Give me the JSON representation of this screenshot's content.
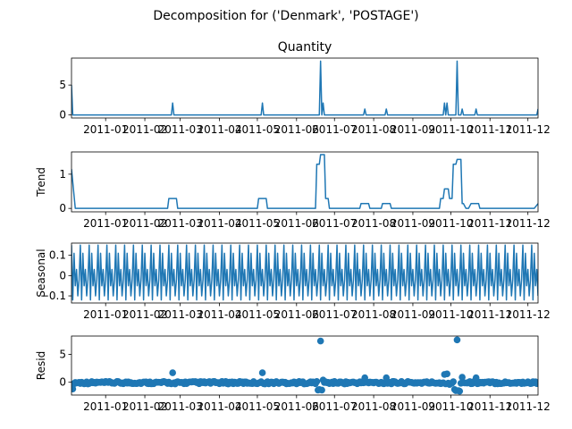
{
  "figure": {
    "suptitle": "Decomposition for ('Denmark', 'POSTAGE')"
  },
  "chart_data": [
    {
      "type": "line",
      "title": "Quantity",
      "ylabel": "",
      "ylim": [
        -0.5,
        9.5
      ],
      "yticks": [
        0,
        5
      ],
      "x_range": [
        "2010-12-05",
        "2011-12-09"
      ],
      "xtick_labels": [
        "2011-01",
        "2011-02",
        "2011-03",
        "2011-04",
        "2011-05",
        "2011-06",
        "2011-07",
        "2011-08",
        "2011-09",
        "2011-10",
        "2011-11",
        "2011-12"
      ],
      "series": [
        {
          "values_by_date": [
            [
              "2010-12-05",
              5
            ],
            [
              "2010-12-06",
              0
            ],
            [
              "2011-02-22",
              0
            ],
            [
              "2011-02-23",
              2
            ],
            [
              "2011-02-24",
              0
            ],
            [
              "2011-05-04",
              0
            ],
            [
              "2011-05-05",
              2
            ],
            [
              "2011-05-06",
              0
            ],
            [
              "2011-06-19",
              0
            ],
            [
              "2011-06-20",
              9
            ],
            [
              "2011-06-21",
              0
            ],
            [
              "2011-06-22",
              2
            ],
            [
              "2011-06-23",
              0
            ],
            [
              "2011-07-24",
              0
            ],
            [
              "2011-07-25",
              1
            ],
            [
              "2011-07-26",
              0
            ],
            [
              "2011-08-10",
              0
            ],
            [
              "2011-08-11",
              1
            ],
            [
              "2011-08-12",
              0
            ],
            [
              "2011-09-25",
              0
            ],
            [
              "2011-09-26",
              2
            ],
            [
              "2011-09-27",
              0
            ],
            [
              "2011-09-28",
              2
            ],
            [
              "2011-09-29",
              0
            ],
            [
              "2011-10-05",
              0
            ],
            [
              "2011-10-06",
              9
            ],
            [
              "2011-10-07",
              0
            ],
            [
              "2011-10-09",
              0
            ],
            [
              "2011-10-10",
              1
            ],
            [
              "2011-10-11",
              0
            ],
            [
              "2011-10-20",
              0
            ],
            [
              "2011-10-21",
              1
            ],
            [
              "2011-10-22",
              0
            ],
            [
              "2011-12-08",
              0
            ],
            [
              "2011-12-09",
              1
            ]
          ]
        }
      ]
    },
    {
      "type": "line",
      "title": "",
      "ylabel": "Trend",
      "ylim": [
        -0.1,
        1.65
      ],
      "yticks": [
        0,
        1
      ],
      "x_range": [
        "2010-12-05",
        "2011-12-09"
      ],
      "xtick_labels": [
        "2011-01",
        "2011-02",
        "2011-03",
        "2011-04",
        "2011-05",
        "2011-06",
        "2011-07",
        "2011-08",
        "2011-09",
        "2011-10",
        "2011-11",
        "2011-12"
      ],
      "series": [
        {
          "values_by_date": [
            [
              "2010-12-05",
              1.15
            ],
            [
              "2010-12-08",
              0
            ],
            [
              "2011-02-19",
              0
            ],
            [
              "2011-02-20",
              0.29
            ],
            [
              "2011-02-26",
              0.29
            ],
            [
              "2011-02-27",
              0
            ],
            [
              "2011-05-01",
              0
            ],
            [
              "2011-05-02",
              0.29
            ],
            [
              "2011-05-08",
              0.29
            ],
            [
              "2011-05-09",
              0
            ],
            [
              "2011-06-16",
              0
            ],
            [
              "2011-06-17",
              1.29
            ],
            [
              "2011-06-19",
              1.29
            ],
            [
              "2011-06-20",
              1.57
            ],
            [
              "2011-06-23",
              1.57
            ],
            [
              "2011-06-24",
              0.29
            ],
            [
              "2011-06-26",
              0.29
            ],
            [
              "2011-06-27",
              0
            ],
            [
              "2011-07-21",
              0
            ],
            [
              "2011-07-22",
              0.14
            ],
            [
              "2011-07-28",
              0.14
            ],
            [
              "2011-07-29",
              0
            ],
            [
              "2011-08-07",
              0
            ],
            [
              "2011-08-08",
              0.14
            ],
            [
              "2011-08-14",
              0.14
            ],
            [
              "2011-08-15",
              0
            ],
            [
              "2011-09-22",
              0
            ],
            [
              "2011-09-23",
              0.29
            ],
            [
              "2011-09-25",
              0.29
            ],
            [
              "2011-09-26",
              0.57
            ],
            [
              "2011-09-29",
              0.57
            ],
            [
              "2011-09-30",
              0.29
            ],
            [
              "2011-10-02",
              0.29
            ],
            [
              "2011-10-03",
              1.29
            ],
            [
              "2011-10-05",
              1.29
            ],
            [
              "2011-10-06",
              1.43
            ],
            [
              "2011-10-09",
              1.43
            ],
            [
              "2011-10-10",
              0.14
            ],
            [
              "2011-10-11",
              0.14
            ],
            [
              "2011-10-13",
              0
            ],
            [
              "2011-10-15",
              0
            ],
            [
              "2011-10-17",
              0.14
            ],
            [
              "2011-10-23",
              0.14
            ],
            [
              "2011-10-24",
              0
            ],
            [
              "2011-12-06",
              0
            ],
            [
              "2011-12-09",
              0.14
            ]
          ]
        }
      ]
    },
    {
      "type": "line",
      "title": "",
      "ylabel": "Seasonal",
      "ylim": [
        -0.135,
        0.16
      ],
      "yticks": [
        -0.1,
        0.0,
        0.1
      ],
      "x_range": [
        "2010-12-05",
        "2011-12-09"
      ],
      "xtick_labels": [
        "2011-01",
        "2011-02",
        "2011-03",
        "2011-04",
        "2011-05",
        "2011-06",
        "2011-07",
        "2011-08",
        "2011-09",
        "2011-10",
        "2011-11",
        "2011-12"
      ],
      "series": [
        {
          "period_days": 7,
          "weekly_pattern": [
            0.15,
            -0.12,
            0.11,
            -0.05,
            0.03,
            -0.1,
            -0.02
          ]
        }
      ]
    },
    {
      "type": "scatter",
      "title": "",
      "ylabel": "Resid",
      "ylim": [
        -2.3,
        8.3
      ],
      "yticks": [
        0,
        5
      ],
      "x_range": [
        "2010-12-05",
        "2011-12-09"
      ],
      "xtick_labels": [
        "2011-01",
        "2011-02",
        "2011-03",
        "2011-04",
        "2011-05",
        "2011-06",
        "2011-07",
        "2011-08",
        "2011-09",
        "2011-10",
        "2011-11",
        "2011-12"
      ],
      "series": [
        {
          "default_value_range": [
            -0.3,
            0.15
          ],
          "outliers_by_date": [
            [
              "2010-12-06",
              -1.2
            ],
            [
              "2011-02-23",
              1.7
            ],
            [
              "2011-02-25",
              -0.3
            ],
            [
              "2011-05-05",
              1.7
            ],
            [
              "2011-05-07",
              -0.3
            ],
            [
              "2011-06-18",
              -1.4
            ],
            [
              "2011-06-19",
              -1.3
            ],
            [
              "2011-06-20",
              7.4
            ],
            [
              "2011-06-21",
              -1.4
            ],
            [
              "2011-06-22",
              0.4
            ],
            [
              "2011-07-25",
              0.8
            ],
            [
              "2011-08-11",
              0.8
            ],
            [
              "2011-09-26",
              1.4
            ],
            [
              "2011-09-28",
              1.5
            ],
            [
              "2011-09-30",
              -0.4
            ],
            [
              "2011-10-04",
              -1.3
            ],
            [
              "2011-10-05",
              -1.5
            ],
            [
              "2011-10-06",
              7.6
            ],
            [
              "2011-10-07",
              -1.5
            ],
            [
              "2011-10-08",
              -1.6
            ],
            [
              "2011-10-10",
              0.9
            ],
            [
              "2011-10-21",
              0.8
            ],
            [
              "2011-12-09",
              -0.2
            ]
          ]
        }
      ]
    }
  ],
  "colors": {
    "series": "#1f77b4",
    "axes": "#000000",
    "background": "#ffffff"
  }
}
